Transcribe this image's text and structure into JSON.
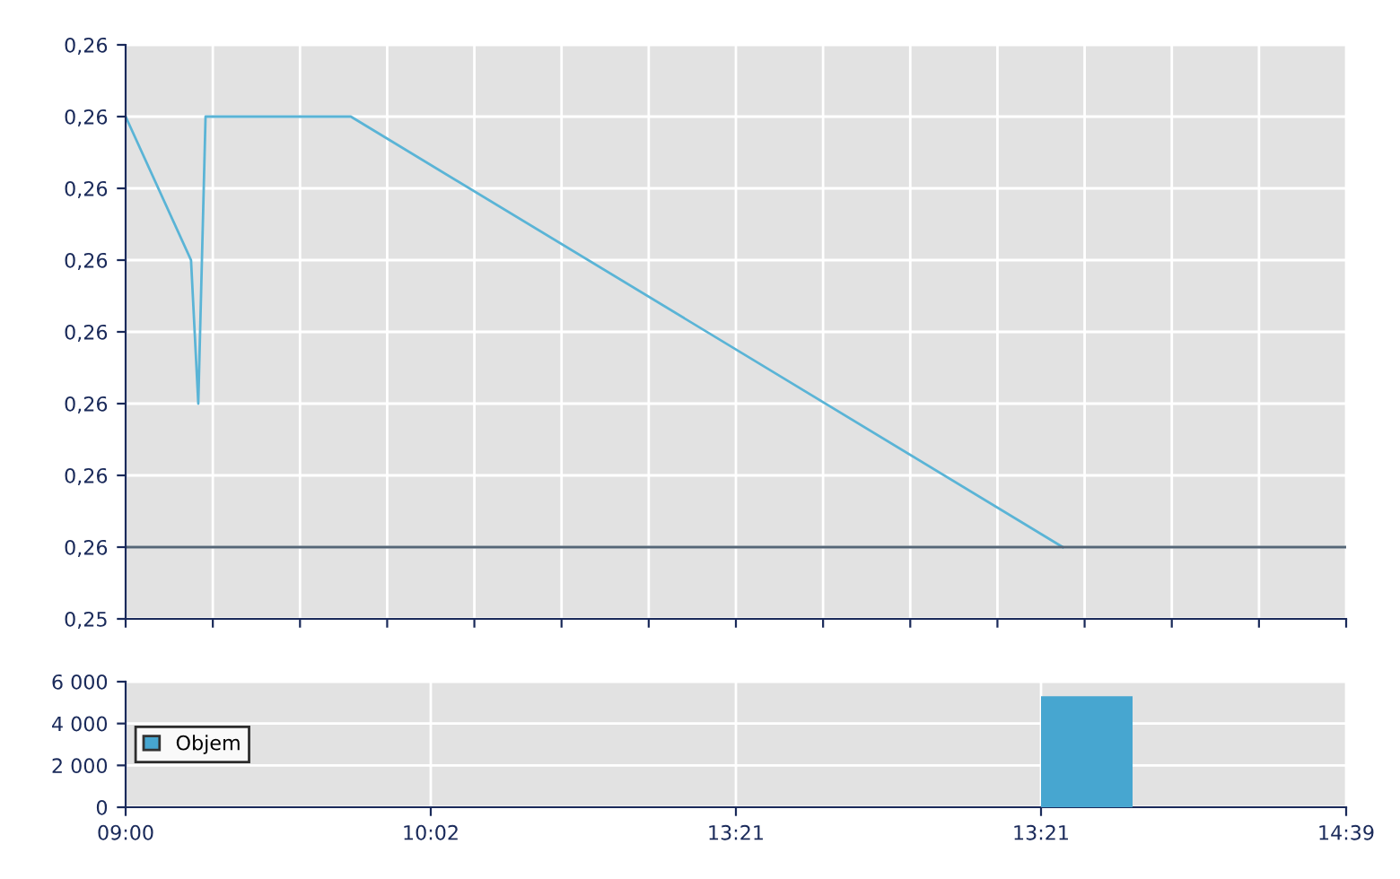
{
  "chart_data": [
    {
      "type": "line",
      "categories": [
        null,
        null,
        null,
        null,
        null,
        null,
        null,
        null,
        null,
        null,
        null,
        null,
        null,
        null,
        null,
        null,
        null,
        null,
        null,
        null,
        null,
        null,
        null,
        null,
        null,
        null,
        null,
        null,
        null,
        null,
        null,
        null,
        null,
        null,
        null,
        null,
        null,
        null,
        null,
        null,
        null,
        null,
        null,
        null,
        null,
        null,
        null,
        null,
        null,
        null,
        null,
        null,
        null,
        null,
        null,
        null,
        null,
        null,
        null,
        null,
        null,
        null,
        null,
        null,
        null,
        null,
        null,
        null,
        null,
        null,
        null,
        null,
        null,
        null,
        null,
        null,
        null,
        null,
        null,
        null,
        null,
        null,
        null,
        null,
        null,
        null,
        null,
        null,
        null,
        null,
        null,
        null,
        null,
        null,
        null,
        null,
        null,
        null,
        null,
        null,
        null,
        null,
        null,
        null,
        null,
        null,
        null,
        null,
        null,
        null,
        null,
        null,
        null,
        null,
        null,
        null,
        null,
        null,
        null,
        null,
        null,
        null,
        null,
        null,
        null,
        null,
        null,
        null,
        null,
        null,
        null,
        null,
        null,
        null,
        null,
        null,
        null,
        null,
        null,
        null,
        null,
        null,
        null,
        null,
        null,
        null,
        null,
        null,
        null,
        null,
        null,
        null,
        null,
        null,
        null,
        null,
        null,
        null,
        null,
        null,
        null,
        null,
        null,
        null,
        null,
        null,
        null,
        null,
        null
      ],
      "series": [
        {
          "color": "#5ab4d6",
          "values": [
            0.2585,
            null,
            null,
            null,
            null,
            null,
            null,
            null,
            null,
            0.2575,
            0.2565,
            0.2585,
            null,
            null,
            null,
            null,
            null,
            null,
            null,
            null,
            null,
            null,
            null,
            null,
            null,
            null,
            null,
            null,
            null,
            null,
            null,
            0.2585,
            null,
            null,
            null,
            null,
            null,
            null,
            null,
            null,
            null,
            null,
            null,
            null,
            null,
            null,
            null,
            null,
            null,
            null,
            null,
            null,
            null,
            null,
            null,
            null,
            null,
            null,
            null,
            null,
            null,
            null,
            null,
            null,
            null,
            null,
            null,
            null,
            null,
            null,
            null,
            null,
            null,
            null,
            null,
            null,
            null,
            null,
            null,
            null,
            null,
            null,
            null,
            null,
            null,
            null,
            null,
            null,
            null,
            null,
            null,
            null,
            null,
            null,
            null,
            null,
            null,
            null,
            null,
            null,
            null,
            null,
            null,
            null,
            null,
            null,
            null,
            null,
            null,
            null,
            null,
            null,
            null,
            null,
            null,
            null,
            null,
            null,
            null,
            null,
            null,
            null,
            null,
            null,
            null,
            null,
            null,
            null,
            null,
            0.2555,
            null,
            null,
            null,
            null,
            null,
            null,
            null,
            null,
            null,
            null,
            null,
            null,
            null,
            null,
            null,
            null,
            null,
            null,
            null,
            null,
            null,
            null,
            null,
            null,
            null,
            null,
            null,
            null,
            null,
            null,
            null,
            null,
            null,
            null,
            null,
            null,
            null,
            null,
            null
          ]
        }
      ],
      "ylim": [
        0.255,
        0.259
      ],
      "yticks": [
        {
          "value": 0.255,
          "label": "0,25"
        },
        {
          "value": 0.2555,
          "label": "0,26"
        },
        {
          "value": 0.256,
          "label": "0,26"
        },
        {
          "value": 0.2565,
          "label": "0,26"
        },
        {
          "value": 0.257,
          "label": "0,26"
        },
        {
          "value": 0.2575,
          "label": "0,26"
        },
        {
          "value": 0.258,
          "label": "0,26"
        },
        {
          "value": 0.2585,
          "label": "0,26"
        },
        {
          "value": 0.259,
          "label": "0,26"
        }
      ],
      "ref_lines": [
        {
          "axis": "y",
          "value": 0.2555,
          "color": "#556677"
        }
      ],
      "grid": true,
      "tick_labels": "y",
      "legend": false
    },
    {
      "type": "bar",
      "categories": [
        "09:00",
        null,
        "10:02",
        null,
        "13:21",
        null,
        "13:21",
        null,
        "14:39"
      ],
      "series": [
        {
          "name": "Objem",
          "color": "#47a6d0",
          "values": [
            null,
            null,
            null,
            null,
            null,
            null,
            5300,
            null,
            null
          ]
        }
      ],
      "ylim": [
        0,
        6000
      ],
      "yticks": [
        {
          "value": 0,
          "label": "0"
        },
        {
          "value": 2000,
          "label": "2 000"
        },
        {
          "value": 4000,
          "label": "4 000"
        },
        {
          "value": 6000,
          "label": "6 000"
        }
      ],
      "grid": true,
      "legend": "left"
    }
  ]
}
